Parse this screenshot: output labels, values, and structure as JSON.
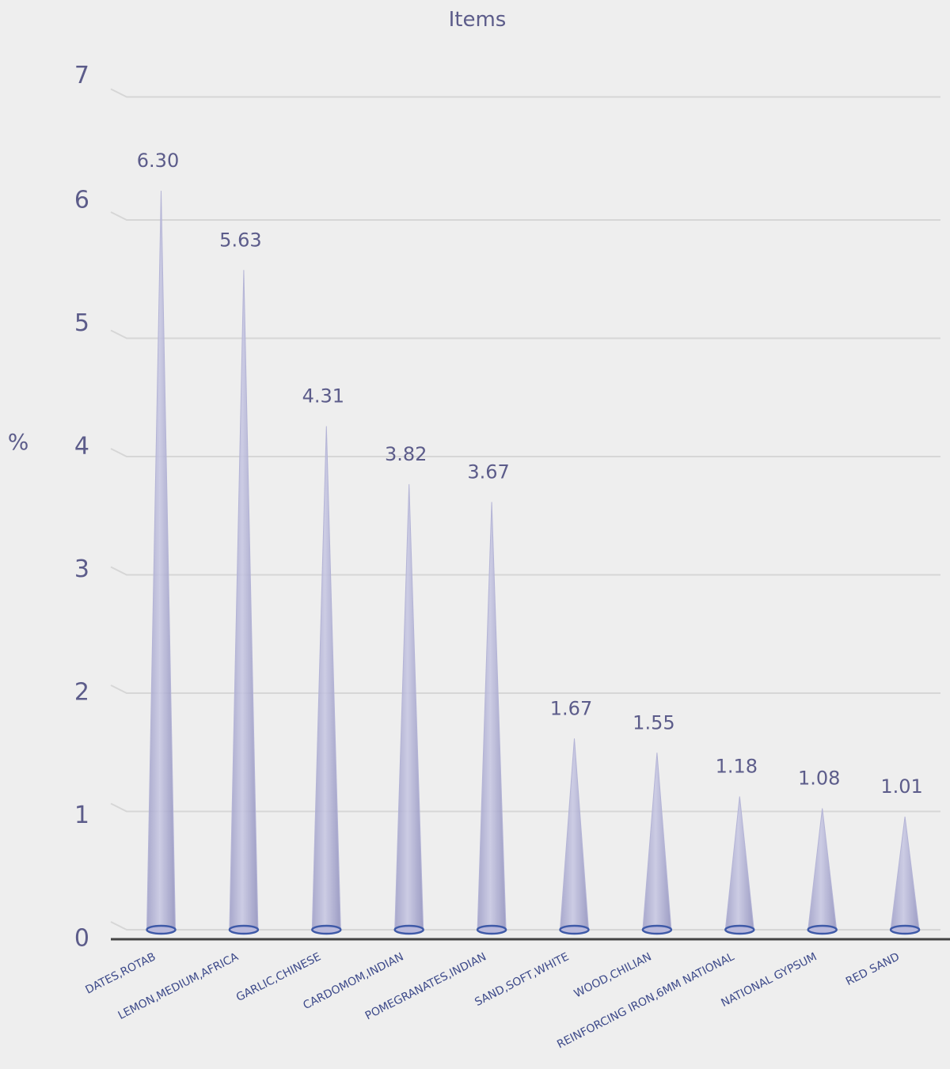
{
  "chart_data": {
    "type": "bar",
    "title": "Items",
    "xlabel": "",
    "ylabel": "%",
    "ylim": [
      0,
      7
    ],
    "yticks": [
      "0",
      "1",
      "2",
      "3",
      "4",
      "5",
      "6",
      "7"
    ],
    "grid": true,
    "categories": [
      "DATES,ROTAB",
      "LEMON,MEDIUM,AFRICA",
      "GARLIC,CHINESE",
      "CARDOMOM,INDIAN",
      "POMEGRANATES,INDIAN",
      "SAND,SOFT,WHITE",
      "WOOD,CHILIAN",
      "REINFORCING IRON,6MM NATIONAL",
      "NATIONAL GYPSUM",
      "RED SAND"
    ],
    "values": [
      6.3,
      5.63,
      4.31,
      3.82,
      3.67,
      1.67,
      1.55,
      1.18,
      1.08,
      1.01
    ],
    "data_labels": [
      "6.30",
      "5.63",
      "4.31",
      "3.82",
      "3.67",
      "1.67",
      "1.55",
      "1.18",
      "1.08",
      "1.01"
    ],
    "colors": {
      "bar": "#a9a9cf",
      "bar_edge": "#3f5aa8",
      "grid": "#d6d6d6",
      "axis": "#444444",
      "text": "#5c5c8a"
    }
  }
}
